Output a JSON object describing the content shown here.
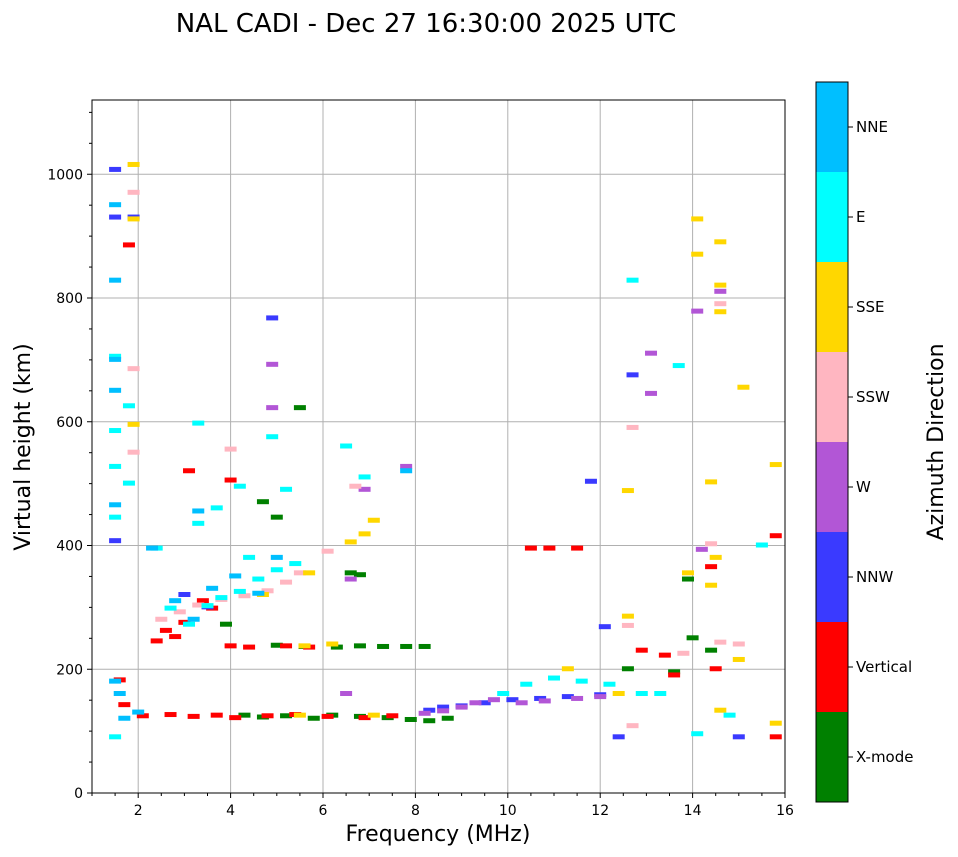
{
  "chart_data": {
    "type": "scatter",
    "title": "NAL CADI - Dec 27 16:30:00 2025 UTC",
    "xlabel": "Frequency (MHz)",
    "ylabel": "Virtual height (km)",
    "xlim": [
      1,
      16
    ],
    "ylim": [
      0,
      1120
    ],
    "xticks": [
      2,
      4,
      6,
      8,
      10,
      12,
      14,
      16
    ],
    "yticks": [
      0,
      200,
      400,
      600,
      800,
      1000
    ],
    "grid": true,
    "colorbar": {
      "label": "Azimuth Direction",
      "categories": [
        {
          "name": "X-mode",
          "color": "#008000"
        },
        {
          "name": "Vertical",
          "color": "#ff0000"
        },
        {
          "name": "NNW",
          "color": "#3a3aff"
        },
        {
          "name": "W",
          "color": "#b256d6"
        },
        {
          "name": "SSW",
          "color": "#ffb6c1"
        },
        {
          "name": "SSE",
          "color": "#ffd700"
        },
        {
          "name": "E",
          "color": "#00ffff"
        },
        {
          "name": "NNE",
          "color": "#00bfff"
        }
      ]
    },
    "series": [
      {
        "name": "X-mode",
        "points": [
          [
            4.3,
            125
          ],
          [
            4.7,
            122
          ],
          [
            5.2,
            124
          ],
          [
            5.8,
            120
          ],
          [
            6.2,
            125
          ],
          [
            6.8,
            123
          ],
          [
            7.4,
            121
          ],
          [
            7.9,
            118
          ],
          [
            8.3,
            116
          ],
          [
            8.7,
            120
          ],
          [
            5.0,
            238
          ],
          [
            5.6,
            236
          ],
          [
            6.3,
            235
          ],
          [
            6.8,
            237
          ],
          [
            7.3,
            236
          ],
          [
            7.8,
            236
          ],
          [
            8.2,
            236
          ],
          [
            3.9,
            272
          ],
          [
            5.5,
            622
          ],
          [
            4.7,
            470
          ],
          [
            6.6,
            355
          ],
          [
            6.8,
            352
          ],
          [
            13.9,
            345
          ],
          [
            14.0,
            250
          ],
          [
            12.6,
            200
          ],
          [
            14.4,
            230
          ],
          [
            13.6,
            195
          ],
          [
            5.0,
            445
          ]
        ]
      },
      {
        "name": "Vertical",
        "points": [
          [
            2.1,
            124
          ],
          [
            2.7,
            126
          ],
          [
            3.2,
            123
          ],
          [
            3.7,
            125
          ],
          [
            4.1,
            121
          ],
          [
            4.8,
            124
          ],
          [
            5.4,
            126
          ],
          [
            6.1,
            123
          ],
          [
            6.9,
            121
          ],
          [
            7.5,
            124
          ],
          [
            4.0,
            237
          ],
          [
            4.4,
            235
          ],
          [
            5.2,
            237
          ],
          [
            5.7,
            235
          ],
          [
            2.4,
            245
          ],
          [
            2.6,
            262
          ],
          [
            2.8,
            252
          ],
          [
            3.0,
            275
          ],
          [
            3.4,
            310
          ],
          [
            3.6,
            298
          ],
          [
            1.8,
            885
          ],
          [
            1.7,
            142
          ],
          [
            1.6,
            182
          ],
          [
            4.0,
            505
          ],
          [
            10.5,
            395
          ],
          [
            10.9,
            395
          ],
          [
            11.5,
            395
          ],
          [
            15.8,
            415
          ],
          [
            15.8,
            90
          ],
          [
            14.5,
            200
          ],
          [
            12.9,
            230
          ],
          [
            13.4,
            222
          ],
          [
            13.6,
            190
          ],
          [
            14.4,
            365
          ],
          [
            3.1,
            520
          ]
        ]
      },
      {
        "name": "NNW",
        "points": [
          [
            8.3,
            133
          ],
          [
            8.6,
            138
          ],
          [
            9.0,
            140
          ],
          [
            9.5,
            145
          ],
          [
            10.1,
            150
          ],
          [
            10.7,
            152
          ],
          [
            11.3,
            155
          ],
          [
            12.0,
            158
          ],
          [
            12.7,
            675
          ],
          [
            12.4,
            90
          ],
          [
            15.0,
            90
          ],
          [
            11.8,
            503
          ],
          [
            12.1,
            268
          ],
          [
            1.5,
            1007
          ],
          [
            1.5,
            930
          ],
          [
            1.9,
            930
          ],
          [
            4.9,
            767
          ],
          [
            1.5,
            407
          ],
          [
            3.0,
            320
          ],
          [
            3.5,
            300
          ]
        ]
      },
      {
        "name": "W",
        "points": [
          [
            8.2,
            128
          ],
          [
            8.6,
            132
          ],
          [
            9.0,
            138
          ],
          [
            9.3,
            145
          ],
          [
            9.7,
            150
          ],
          [
            10.3,
            145
          ],
          [
            10.8,
            148
          ],
          [
            11.5,
            152
          ],
          [
            12.0,
            155
          ],
          [
            13.1,
            710
          ],
          [
            13.1,
            645
          ],
          [
            14.1,
            778
          ],
          [
            14.6,
            810
          ],
          [
            4.9,
            692
          ],
          [
            4.9,
            622
          ],
          [
            6.6,
            345
          ],
          [
            6.9,
            490
          ],
          [
            14.2,
            393
          ],
          [
            7.8,
            527
          ],
          [
            6.5,
            160
          ]
        ]
      },
      {
        "name": "SSW",
        "points": [
          [
            2.5,
            280
          ],
          [
            2.9,
            292
          ],
          [
            3.3,
            303
          ],
          [
            3.8,
            312
          ],
          [
            4.3,
            318
          ],
          [
            4.8,
            326
          ],
          [
            5.2,
            340
          ],
          [
            5.5,
            355
          ],
          [
            12.7,
            590
          ],
          [
            12.7,
            108
          ],
          [
            14.6,
            790
          ],
          [
            15.0,
            240
          ],
          [
            14.6,
            243
          ],
          [
            13.8,
            225
          ],
          [
            14.4,
            402
          ],
          [
            12.6,
            270
          ],
          [
            1.9,
            970
          ],
          [
            1.9,
            685
          ],
          [
            1.9,
            550
          ],
          [
            4.0,
            555
          ],
          [
            6.7,
            495
          ],
          [
            6.1,
            390
          ]
        ]
      },
      {
        "name": "SSE",
        "points": [
          [
            1.9,
            1015
          ],
          [
            1.9,
            927
          ],
          [
            1.9,
            595
          ],
          [
            6.9,
            418
          ],
          [
            6.6,
            405
          ],
          [
            7.1,
            440
          ],
          [
            4.7,
            320
          ],
          [
            5.7,
            355
          ],
          [
            5.6,
            237
          ],
          [
            6.2,
            240
          ],
          [
            12.6,
            488
          ],
          [
            12.6,
            285
          ],
          [
            14.1,
            927
          ],
          [
            14.1,
            870
          ],
          [
            14.6,
            890
          ],
          [
            14.6,
            820
          ],
          [
            14.6,
            777
          ],
          [
            15.1,
            655
          ],
          [
            14.4,
            502
          ],
          [
            14.5,
            380
          ],
          [
            14.4,
            335
          ],
          [
            15.8,
            530
          ],
          [
            15.8,
            112
          ],
          [
            14.6,
            133
          ],
          [
            15.0,
            215
          ],
          [
            13.9,
            355
          ],
          [
            11.3,
            200
          ],
          [
            12.4,
            160
          ],
          [
            7.1,
            125
          ],
          [
            5.5,
            125
          ]
        ]
      },
      {
        "name": "E",
        "points": [
          [
            1.5,
            705
          ],
          [
            1.5,
            585
          ],
          [
            1.5,
            527
          ],
          [
            1.5,
            445
          ],
          [
            1.8,
            500
          ],
          [
            2.4,
            395
          ],
          [
            2.7,
            298
          ],
          [
            3.1,
            272
          ],
          [
            3.5,
            302
          ],
          [
            3.8,
            315
          ],
          [
            4.2,
            325
          ],
          [
            4.6,
            345
          ],
          [
            5.0,
            360
          ],
          [
            5.4,
            370
          ],
          [
            3.3,
            435
          ],
          [
            3.7,
            460
          ],
          [
            4.2,
            495
          ],
          [
            4.9,
            575
          ],
          [
            3.3,
            597
          ],
          [
            1.8,
            625
          ],
          [
            12.7,
            828
          ],
          [
            13.7,
            690
          ],
          [
            14.8,
            125
          ],
          [
            15.5,
            400
          ],
          [
            14.1,
            95
          ],
          [
            9.9,
            160
          ],
          [
            10.4,
            175
          ],
          [
            11.0,
            185
          ],
          [
            11.6,
            180
          ],
          [
            12.2,
            175
          ],
          [
            12.9,
            160
          ],
          [
            13.3,
            160
          ],
          [
            5.2,
            490
          ],
          [
            6.9,
            510
          ],
          [
            4.4,
            380
          ],
          [
            6.5,
            560
          ],
          [
            1.5,
            90
          ]
        ]
      },
      {
        "name": "NNE",
        "points": [
          [
            1.5,
            828
          ],
          [
            1.5,
            700
          ],
          [
            1.5,
            650
          ],
          [
            1.5,
            465
          ],
          [
            1.5,
            180
          ],
          [
            1.6,
            160
          ],
          [
            1.7,
            120
          ],
          [
            2.0,
            130
          ],
          [
            2.3,
            395
          ],
          [
            2.8,
            310
          ],
          [
            3.2,
            280
          ],
          [
            3.6,
            330
          ],
          [
            4.1,
            350
          ],
          [
            4.6,
            322
          ],
          [
            5.0,
            380
          ],
          [
            3.3,
            455
          ],
          [
            1.5,
            950
          ],
          [
            7.8,
            520
          ]
        ]
      }
    ]
  }
}
